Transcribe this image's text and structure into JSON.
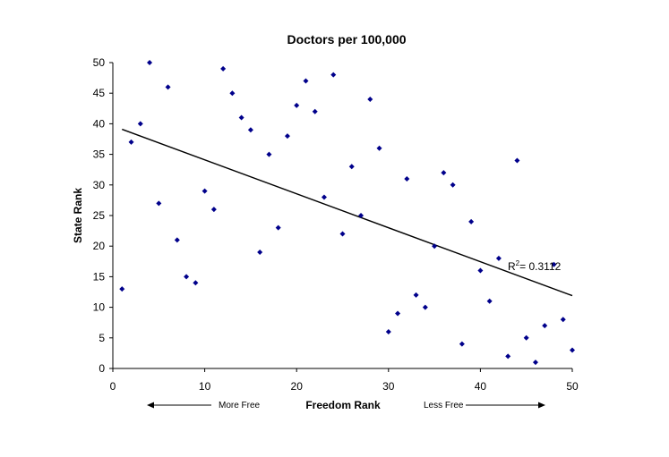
{
  "chart_data": {
    "type": "scatter",
    "title": "Doctors per 100,000",
    "xlabel": "Freedom Rank",
    "ylabel": "State Rank",
    "xlim": [
      0,
      50
    ],
    "ylim": [
      0,
      50
    ],
    "xticks": [
      "0",
      "10",
      "20",
      "30",
      "40",
      "50"
    ],
    "yticks": [
      "0",
      "5",
      "10",
      "15",
      "20",
      "25",
      "30",
      "35",
      "40",
      "45",
      "50"
    ],
    "grid": false,
    "marker_color": "#00008B",
    "points": [
      [
        1,
        13
      ],
      [
        2,
        37
      ],
      [
        3,
        40
      ],
      [
        4,
        50
      ],
      [
        5,
        27
      ],
      [
        6,
        46
      ],
      [
        7,
        21
      ],
      [
        8,
        15
      ],
      [
        9,
        14
      ],
      [
        10,
        29
      ],
      [
        11,
        26
      ],
      [
        12,
        49
      ],
      [
        13,
        45
      ],
      [
        14,
        41
      ],
      [
        15,
        39
      ],
      [
        16,
        19
      ],
      [
        17,
        35
      ],
      [
        18,
        23
      ],
      [
        19,
        38
      ],
      [
        20,
        43
      ],
      [
        21,
        47
      ],
      [
        22,
        42
      ],
      [
        23,
        28
      ],
      [
        24,
        48
      ],
      [
        25,
        22
      ],
      [
        26,
        33
      ],
      [
        27,
        25
      ],
      [
        28,
        44
      ],
      [
        29,
        36
      ],
      [
        30,
        6
      ],
      [
        31,
        9
      ],
      [
        32,
        31
      ],
      [
        33,
        12
      ],
      [
        34,
        10
      ],
      [
        35,
        20
      ],
      [
        36,
        32
      ],
      [
        37,
        30
      ],
      [
        38,
        4
      ],
      [
        39,
        24
      ],
      [
        40,
        16
      ],
      [
        41,
        11
      ],
      [
        42,
        18
      ],
      [
        43,
        2
      ],
      [
        44,
        34
      ],
      [
        45,
        5
      ],
      [
        46,
        1
      ],
      [
        47,
        7
      ],
      [
        48,
        17
      ],
      [
        49,
        8
      ],
      [
        50,
        3
      ]
    ],
    "trendline": {
      "x": [
        1,
        50
      ],
      "y": [
        39.1,
        11.9
      ]
    },
    "r_squared_label": "= 0.3112",
    "annotations": {
      "left": "More Free",
      "right": "Less Free"
    }
  }
}
